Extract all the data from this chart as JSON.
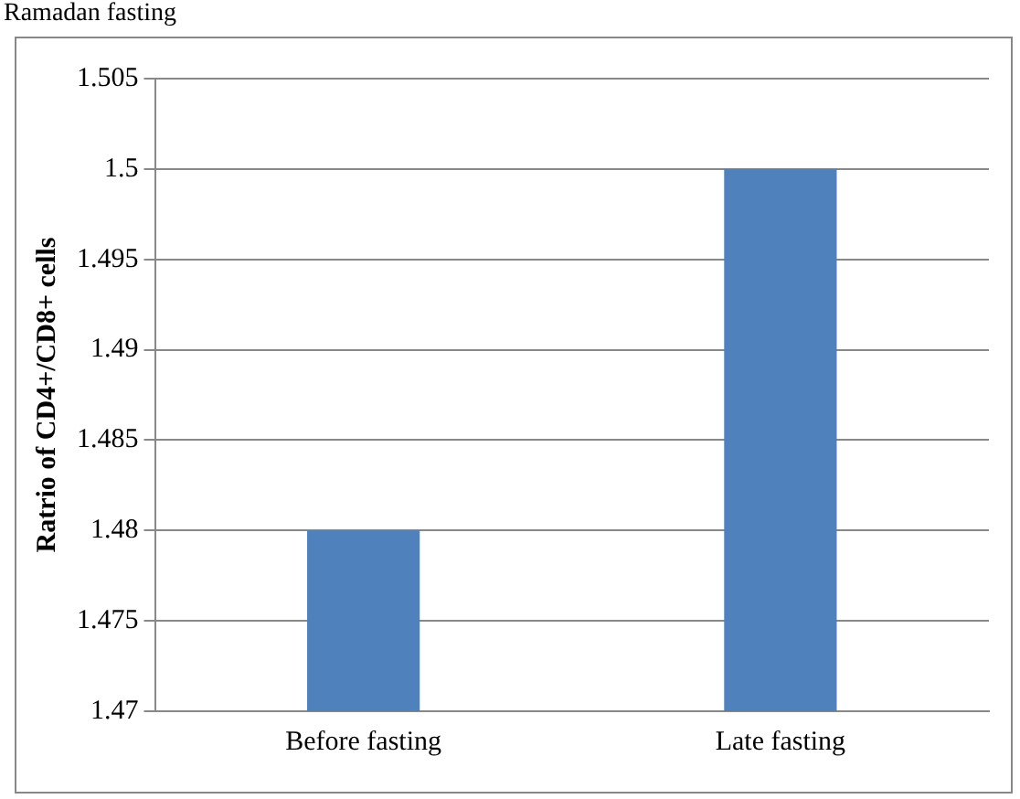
{
  "chart_data": {
    "type": "bar",
    "title": "Ramadan fasting",
    "ylabel": "Ratrio of CD4+/CD8+ cells",
    "categories": [
      "Before fasting",
      "Late fasting"
    ],
    "values": [
      1.48,
      1.5
    ],
    "color": "#4f81bd",
    "ylim": [
      1.47,
      1.505
    ],
    "yticks": [
      1.47,
      1.475,
      1.48,
      1.485,
      1.49,
      1.495,
      1.5,
      1.505
    ],
    "grid": "y"
  }
}
